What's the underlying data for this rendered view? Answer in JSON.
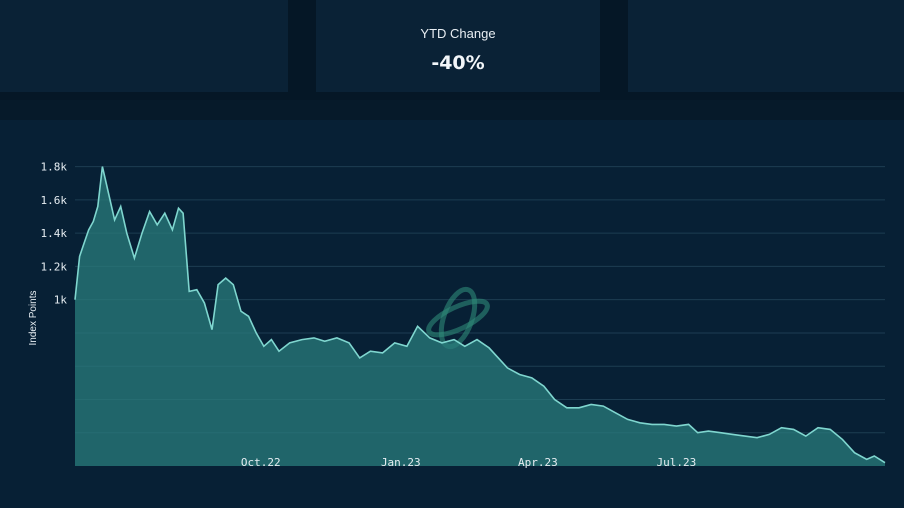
{
  "stats": {
    "ytd_label": "YTD Change",
    "ytd_value": "-40%"
  },
  "colors": {
    "line": "#7fd6cf",
    "area": "#2a7c7c",
    "grid": "#1d3d52",
    "watermark": "#2f8a78"
  },
  "chart_data": {
    "type": "area",
    "ylabel": "Index Points",
    "ylim": [
      0,
      1900
    ],
    "grid": true,
    "y_ticks": [
      {
        "value": 1000,
        "label": "1k"
      },
      {
        "value": 1200,
        "label": "1.2k"
      },
      {
        "value": 1400,
        "label": "1.4k"
      },
      {
        "value": 1600,
        "label": "1.6k"
      },
      {
        "value": 1800,
        "label": "1.8k"
      }
    ],
    "x_range": [
      "2022-06-01",
      "2023-11-15"
    ],
    "x_ticks": [
      {
        "date": "2022-10-01",
        "label": "Oct.22"
      },
      {
        "date": "2023-01-01",
        "label": "Jan.23"
      },
      {
        "date": "2023-04-01",
        "label": "Apr.23"
      },
      {
        "date": "2023-07-01",
        "label": "Jul.23"
      }
    ],
    "series": [
      {
        "points": [
          [
            "2022-06-01",
            1000
          ],
          [
            "2022-06-04",
            1260
          ],
          [
            "2022-06-07",
            1340
          ],
          [
            "2022-06-10",
            1420
          ],
          [
            "2022-06-13",
            1470
          ],
          [
            "2022-06-16",
            1560
          ],
          [
            "2022-06-19",
            1800
          ],
          [
            "2022-06-23",
            1640
          ],
          [
            "2022-06-27",
            1480
          ],
          [
            "2022-07-01",
            1560
          ],
          [
            "2022-07-05",
            1400
          ],
          [
            "2022-07-10",
            1250
          ],
          [
            "2022-07-15",
            1400
          ],
          [
            "2022-07-20",
            1530
          ],
          [
            "2022-07-25",
            1450
          ],
          [
            "2022-07-30",
            1520
          ],
          [
            "2022-08-04",
            1420
          ],
          [
            "2022-08-08",
            1550
          ],
          [
            "2022-08-11",
            1520
          ],
          [
            "2022-08-15",
            1050
          ],
          [
            "2022-08-20",
            1060
          ],
          [
            "2022-08-25",
            980
          ],
          [
            "2022-08-30",
            820
          ],
          [
            "2022-09-03",
            1090
          ],
          [
            "2022-09-08",
            1130
          ],
          [
            "2022-09-13",
            1090
          ],
          [
            "2022-09-18",
            930
          ],
          [
            "2022-09-23",
            900
          ],
          [
            "2022-09-28",
            800
          ],
          [
            "2022-10-03",
            720
          ],
          [
            "2022-10-08",
            760
          ],
          [
            "2022-10-13",
            690
          ],
          [
            "2022-10-20",
            740
          ],
          [
            "2022-10-28",
            760
          ],
          [
            "2022-11-05",
            770
          ],
          [
            "2022-11-12",
            750
          ],
          [
            "2022-11-20",
            770
          ],
          [
            "2022-11-28",
            740
          ],
          [
            "2022-12-05",
            650
          ],
          [
            "2022-12-12",
            690
          ],
          [
            "2022-12-20",
            680
          ],
          [
            "2022-12-28",
            740
          ],
          [
            "2023-01-05",
            720
          ],
          [
            "2023-01-12",
            840
          ],
          [
            "2023-01-20",
            770
          ],
          [
            "2023-01-28",
            740
          ],
          [
            "2023-02-05",
            760
          ],
          [
            "2023-02-12",
            720
          ],
          [
            "2023-02-20",
            760
          ],
          [
            "2023-02-28",
            710
          ],
          [
            "2023-03-06",
            650
          ],
          [
            "2023-03-12",
            590
          ],
          [
            "2023-03-20",
            550
          ],
          [
            "2023-03-28",
            530
          ],
          [
            "2023-04-05",
            480
          ],
          [
            "2023-04-12",
            400
          ],
          [
            "2023-04-20",
            350
          ],
          [
            "2023-04-28",
            350
          ],
          [
            "2023-05-06",
            370
          ],
          [
            "2023-05-14",
            360
          ],
          [
            "2023-05-22",
            320
          ],
          [
            "2023-05-30",
            280
          ],
          [
            "2023-06-07",
            260
          ],
          [
            "2023-06-15",
            250
          ],
          [
            "2023-06-23",
            250
          ],
          [
            "2023-07-01",
            240
          ],
          [
            "2023-07-09",
            250
          ],
          [
            "2023-07-15",
            200
          ],
          [
            "2023-07-22",
            210
          ],
          [
            "2023-07-30",
            200
          ],
          [
            "2023-08-07",
            190
          ],
          [
            "2023-08-15",
            180
          ],
          [
            "2023-08-23",
            170
          ],
          [
            "2023-08-31",
            190
          ],
          [
            "2023-09-08",
            230
          ],
          [
            "2023-09-16",
            220
          ],
          [
            "2023-09-24",
            180
          ],
          [
            "2023-10-02",
            230
          ],
          [
            "2023-10-10",
            220
          ],
          [
            "2023-10-18",
            160
          ],
          [
            "2023-10-26",
            80
          ],
          [
            "2023-11-03",
            40
          ],
          [
            "2023-11-08",
            60
          ],
          [
            "2023-11-15",
            20
          ]
        ]
      }
    ]
  }
}
